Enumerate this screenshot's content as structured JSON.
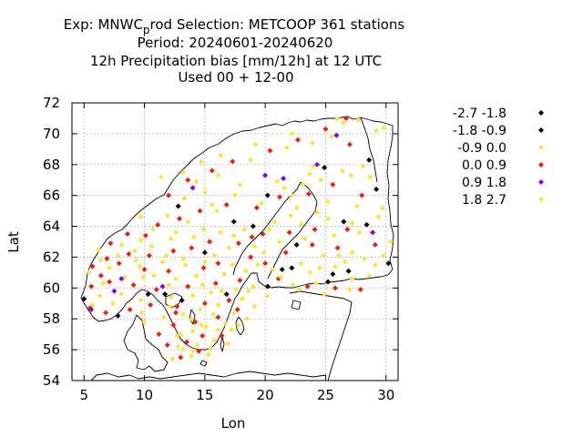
{
  "title": {
    "line1_prefix": "Exp: MNWC",
    "line1_sub": "p",
    "line1_suffix": "rod   Selection: METCOOP    361 stations",
    "line2": "Period: 20240601-20240620",
    "line3": "12h Precipitation bias [mm/12h] at  12 UTC",
    "line4": "Used  00 + 12-00"
  },
  "colors": {
    "black": "#000000",
    "yellow": "#f5e642",
    "red": "#e8210f",
    "purple": "#8a00e0"
  },
  "chart_data": {
    "type": "scatter",
    "xlabel": "Lon",
    "ylabel": "Lat",
    "xlim": [
      4,
      31
    ],
    "ylim": [
      54,
      72
    ],
    "xticks": [
      5,
      10,
      15,
      20,
      25,
      30
    ],
    "yticks": [
      54,
      56,
      58,
      60,
      62,
      64,
      66,
      68,
      70,
      72
    ],
    "grid": true,
    "legend_position": "right",
    "series": [
      {
        "name": "-2.7 -1.8",
        "color": "#000000",
        "points": [
          [
            28.6,
            68.3
          ],
          [
            26.9,
            61.1
          ],
          [
            25.2,
            60.4
          ],
          [
            20.2,
            60.1
          ]
        ]
      },
      {
        "name": "-1.8 -0.9",
        "color": "#000000",
        "points": [
          [
            22.2,
            61.3
          ],
          [
            24.9,
            67.8
          ],
          [
            28.4,
            64.1
          ],
          [
            29.2,
            66.4
          ],
          [
            22.6,
            62.8
          ],
          [
            19.0,
            64.0
          ],
          [
            17.4,
            64.3
          ],
          [
            12.8,
            65.3
          ],
          [
            15.0,
            62.3
          ],
          [
            11.7,
            59.6
          ],
          [
            10.3,
            59.6
          ],
          [
            7.8,
            58.2
          ],
          [
            5.0,
            59.3
          ],
          [
            21.4,
            61.2
          ],
          [
            25.6,
            60.9
          ],
          [
            26.5,
            64.3
          ],
          [
            20.2,
            66.0
          ],
          [
            13.1,
            59.2
          ],
          [
            30.2,
            61.6
          ],
          [
            16.8,
            59.6
          ]
        ]
      },
      {
        "name": "-0.9 0.0",
        "color": "#f5e642",
        "points": [
          [
            26.0,
            71.0
          ],
          [
            27.7,
            70.9
          ],
          [
            29.8,
            70.4
          ],
          [
            25.5,
            69.8
          ],
          [
            23.9,
            69.4
          ],
          [
            21.8,
            69.1
          ],
          [
            19.2,
            69.3
          ],
          [
            16.3,
            68.6
          ],
          [
            14.7,
            68.2
          ],
          [
            13.2,
            67.5
          ],
          [
            11.4,
            67.2
          ],
          [
            24.0,
            67.9
          ],
          [
            26.4,
            67.6
          ],
          [
            28.7,
            67.2
          ],
          [
            23.1,
            66.7
          ],
          [
            21.6,
            66.5
          ],
          [
            17.9,
            66.7
          ],
          [
            15.0,
            66.2
          ],
          [
            13.3,
            65.8
          ],
          [
            25.2,
            65.6
          ],
          [
            27.6,
            65.3
          ],
          [
            29.7,
            65.2
          ],
          [
            24.3,
            64.9
          ],
          [
            22.1,
            64.7
          ],
          [
            20.8,
            64.3
          ],
          [
            18.3,
            63.8
          ],
          [
            16.3,
            63.6
          ],
          [
            14.1,
            63.3
          ],
          [
            12.2,
            63.2
          ],
          [
            10.7,
            63.8
          ],
          [
            9.7,
            63.1
          ],
          [
            8.1,
            62.8
          ],
          [
            6.2,
            62.5
          ],
          [
            29.4,
            64.6
          ],
          [
            27.8,
            63.6
          ],
          [
            25.7,
            63.4
          ],
          [
            23.3,
            63.2
          ],
          [
            21.2,
            63.0
          ],
          [
            19.1,
            62.7
          ],
          [
            17.0,
            62.6
          ],
          [
            15.8,
            62.1
          ],
          [
            13.2,
            61.9
          ],
          [
            11.5,
            61.7
          ],
          [
            9.3,
            61.8
          ],
          [
            7.1,
            61.3
          ],
          [
            5.4,
            61.0
          ],
          [
            29.8,
            62.1
          ],
          [
            28.2,
            61.9
          ],
          [
            26.6,
            61.7
          ],
          [
            24.5,
            61.3
          ],
          [
            23.0,
            61.6
          ],
          [
            20.6,
            61.2
          ],
          [
            18.4,
            61.1
          ],
          [
            16.6,
            60.9
          ],
          [
            14.3,
            60.8
          ],
          [
            12.6,
            60.6
          ],
          [
            10.8,
            60.8
          ],
          [
            8.4,
            60.7
          ],
          [
            6.6,
            60.3
          ],
          [
            28.6,
            60.8
          ],
          [
            27.2,
            60.6
          ],
          [
            24.2,
            60.3
          ],
          [
            22.3,
            60.2
          ],
          [
            19.0,
            60.1
          ],
          [
            17.6,
            59.9
          ],
          [
            15.5,
            59.7
          ],
          [
            14.0,
            59.5
          ],
          [
            12.2,
            59.4
          ],
          [
            9.7,
            59.2
          ],
          [
            7.4,
            59.0
          ],
          [
            5.7,
            58.9
          ],
          [
            18.1,
            59.3
          ],
          [
            16.1,
            58.9
          ],
          [
            14.6,
            58.6
          ],
          [
            13.2,
            58.3
          ],
          [
            11.6,
            58.1
          ],
          [
            9.8,
            58.4
          ],
          [
            18.5,
            58.0
          ],
          [
            16.7,
            57.7
          ],
          [
            15.1,
            57.5
          ],
          [
            14.0,
            57.2
          ],
          [
            12.7,
            56.9
          ],
          [
            17.2,
            57.3
          ],
          [
            15.8,
            56.6
          ],
          [
            14.4,
            56.3
          ],
          [
            13.2,
            56.0
          ],
          [
            15.3,
            55.7
          ],
          [
            13.9,
            55.6
          ],
          [
            12.3,
            55.4
          ],
          [
            30.4,
            63.0
          ],
          [
            27.2,
            62.3
          ],
          [
            22.6,
            65.2
          ],
          [
            19.7,
            65.5
          ],
          [
            16.0,
            65.0
          ],
          [
            24.8,
            62.1
          ]
        ]
      },
      {
        "name": "0.0 0.9",
        "color": "#e8210f",
        "points": [
          [
            26.7,
            71.0
          ],
          [
            25.0,
            70.3
          ],
          [
            27.0,
            69.3
          ],
          [
            22.7,
            69.6
          ],
          [
            20.4,
            68.9
          ],
          [
            17.3,
            68.2
          ],
          [
            15.6,
            67.6
          ],
          [
            13.6,
            67.0
          ],
          [
            12.0,
            66.0
          ],
          [
            25.6,
            66.7
          ],
          [
            28.0,
            66.0
          ],
          [
            23.6,
            66.1
          ],
          [
            21.2,
            65.9
          ],
          [
            19.3,
            65.2
          ],
          [
            16.8,
            65.4
          ],
          [
            14.6,
            65.0
          ],
          [
            12.9,
            64.5
          ],
          [
            11.1,
            64.1
          ],
          [
            10.1,
            63.4
          ],
          [
            8.6,
            63.5
          ],
          [
            7.2,
            62.9
          ],
          [
            26.8,
            63.8
          ],
          [
            24.1,
            63.8
          ],
          [
            22.0,
            63.6
          ],
          [
            19.8,
            63.5
          ],
          [
            17.8,
            62.9
          ],
          [
            15.4,
            63.0
          ],
          [
            13.9,
            62.6
          ],
          [
            12.4,
            62.4
          ],
          [
            10.4,
            62.1
          ],
          [
            8.7,
            62.2
          ],
          [
            6.9,
            61.9
          ],
          [
            5.7,
            61.4
          ],
          [
            29.1,
            62.8
          ],
          [
            26.0,
            62.6
          ],
          [
            21.7,
            62.3
          ],
          [
            18.8,
            62.0
          ],
          [
            16.1,
            61.6
          ],
          [
            14.9,
            61.3
          ],
          [
            12.0,
            61.1
          ],
          [
            10.0,
            61.2
          ],
          [
            7.9,
            61.6
          ],
          [
            6.4,
            60.8
          ],
          [
            27.9,
            59.9
          ],
          [
            25.8,
            60.0
          ],
          [
            23.5,
            60.1
          ],
          [
            21.1,
            60.6
          ],
          [
            17.9,
            60.5
          ],
          [
            15.9,
            60.3
          ],
          [
            13.6,
            60.1
          ],
          [
            11.0,
            59.9
          ],
          [
            9.1,
            60.2
          ],
          [
            7.1,
            60.4
          ],
          [
            5.6,
            60.1
          ],
          [
            17.0,
            59.2
          ],
          [
            15.0,
            59.0
          ],
          [
            12.7,
            58.8
          ],
          [
            10.5,
            58.9
          ],
          [
            8.8,
            58.6
          ],
          [
            6.8,
            58.4
          ],
          [
            5.5,
            58.7
          ],
          [
            17.7,
            58.6
          ],
          [
            16.1,
            58.1
          ],
          [
            14.2,
            57.8
          ],
          [
            12.4,
            57.6
          ],
          [
            11.2,
            57.0
          ],
          [
            16.4,
            56.9
          ],
          [
            14.8,
            56.9
          ],
          [
            13.5,
            56.5
          ],
          [
            11.9,
            56.3
          ],
          [
            14.5,
            55.9
          ],
          [
            13.0,
            55.5
          ],
          [
            12.6,
            58.4
          ],
          [
            18.9,
            63.3
          ],
          [
            20.0,
            61.6
          ],
          [
            23.9,
            62.8
          ]
        ]
      },
      {
        "name": "0.9 1.8",
        "color": "#8a00e0",
        "points": [
          [
            25.9,
            69.9
          ],
          [
            24.3,
            68.0
          ],
          [
            21.5,
            67.1
          ],
          [
            20.0,
            67.3
          ],
          [
            28.9,
            63.6
          ],
          [
            8.1,
            60.6
          ],
          [
            11.5,
            60.1
          ],
          [
            5.6,
            58.6
          ],
          [
            14.0,
            66.5
          ],
          [
            7.5,
            59.8
          ]
        ]
      },
      {
        "name": "1.8 2.7",
        "color": "#f5e642",
        "points": [
          [
            26.5,
            70.7
          ],
          [
            29.2,
            70.2
          ],
          [
            22.2,
            70.0
          ],
          [
            18.8,
            68.3
          ],
          [
            16.1,
            67.3
          ],
          [
            14.3,
            66.9
          ],
          [
            27.1,
            67.3
          ],
          [
            24.6,
            67.0
          ],
          [
            22.2,
            66.0
          ],
          [
            17.5,
            66.0
          ],
          [
            15.6,
            65.4
          ],
          [
            13.6,
            64.3
          ],
          [
            11.9,
            64.7
          ],
          [
            9.7,
            64.6
          ],
          [
            25.2,
            64.5
          ],
          [
            27.2,
            64.2
          ],
          [
            23.0,
            64.1
          ],
          [
            20.3,
            63.8
          ],
          [
            17.4,
            63.4
          ],
          [
            14.9,
            63.8
          ],
          [
            12.6,
            63.6
          ],
          [
            10.6,
            62.7
          ],
          [
            9.2,
            62.4
          ],
          [
            7.8,
            62.1
          ],
          [
            29.1,
            61.5
          ],
          [
            25.8,
            61.4
          ],
          [
            23.7,
            61.0
          ],
          [
            21.3,
            60.7
          ],
          [
            19.4,
            61.5
          ],
          [
            17.3,
            61.5
          ],
          [
            15.0,
            61.7
          ],
          [
            13.4,
            61.5
          ],
          [
            11.8,
            62.1
          ],
          [
            9.6,
            61.4
          ],
          [
            6.4,
            61.8
          ],
          [
            27.0,
            59.9
          ],
          [
            24.9,
            59.6
          ],
          [
            22.8,
            59.9
          ],
          [
            20.2,
            59.5
          ],
          [
            18.6,
            59.8
          ],
          [
            16.4,
            59.8
          ],
          [
            14.8,
            60.2
          ],
          [
            12.0,
            60.2
          ],
          [
            9.9,
            60.7
          ],
          [
            8.1,
            59.6
          ],
          [
            6.3,
            59.5
          ],
          [
            19.1,
            58.8
          ],
          [
            17.4,
            58.4
          ],
          [
            15.7,
            58.3
          ],
          [
            13.9,
            58.0
          ],
          [
            12.1,
            58.8
          ],
          [
            10.0,
            57.8
          ],
          [
            17.8,
            57.6
          ],
          [
            16.1,
            57.3
          ],
          [
            14.7,
            57.6
          ],
          [
            13.0,
            57.0
          ],
          [
            16.9,
            56.4
          ],
          [
            15.5,
            56.1
          ],
          [
            12.8,
            56.2
          ],
          [
            14.0,
            55.9
          ],
          [
            21.0,
            66.9
          ],
          [
            23.7,
            67.4
          ],
          [
            28.1,
            67.9
          ],
          [
            19.9,
            62.3
          ],
          [
            26.1,
            62.1
          ]
        ]
      }
    ]
  }
}
